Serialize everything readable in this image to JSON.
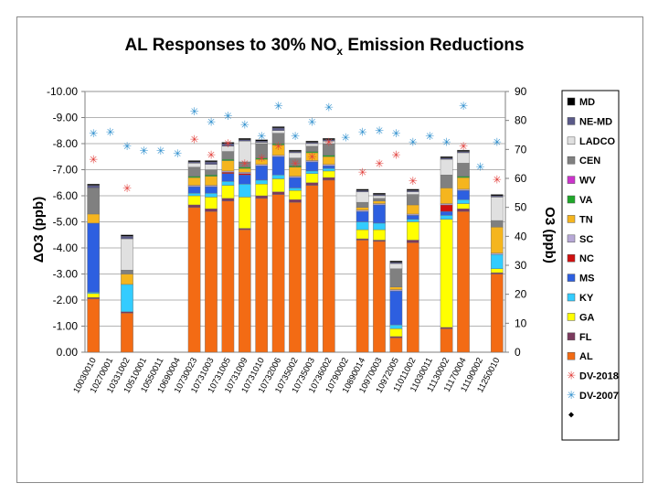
{
  "chart_data": {
    "type": "bar",
    "stacked": true,
    "title": "AL Responses to 30% NOx Emission Reductions",
    "title_main": "AL Responses to 30% NO",
    "title_sub": "x",
    "title_rest": " Emission Reductions",
    "ylabel_left": "ΔO3 (ppb)",
    "ylabel_right": "O3 (ppb)",
    "ylim_left": [
      0,
      -10
    ],
    "ylim_right": [
      0,
      90
    ],
    "yticks_left": [
      "0.00",
      "-1.00",
      "-2.00",
      "-3.00",
      "-4.00",
      "-5.00",
      "-6.00",
      "-7.00",
      "-8.00",
      "-9.00",
      "-10.00"
    ],
    "yticks_right": [
      "0",
      "10",
      "20",
      "30",
      "40",
      "50",
      "60",
      "70",
      "80",
      "90"
    ],
    "categories": [
      "10030010",
      "10270001",
      "10331002",
      "10510001",
      "10550011",
      "10690004",
      "10730023",
      "10731003",
      "10731005",
      "10731009",
      "10731010",
      "10732006",
      "10735002",
      "10735003",
      "10736002",
      "10790002",
      "10890014",
      "10970003",
      "10972005",
      "11011002",
      "11030011",
      "11130002",
      "11170004",
      "11190002",
      "11250010"
    ],
    "series": [
      {
        "name": "AL",
        "color": "#f36b14",
        "values": [
          2.05,
          0,
          1.5,
          0,
          0,
          0,
          5.55,
          5.4,
          5.8,
          4.7,
          5.9,
          6.05,
          5.75,
          6.4,
          6.6,
          0,
          4.3,
          4.25,
          0.55,
          4.2,
          0,
          0.9,
          5.4,
          0,
          3.0
        ]
      },
      {
        "name": "FL",
        "color": "#7b3a5e",
        "values": [
          0.05,
          0,
          0.05,
          0,
          0,
          0,
          0.1,
          0.1,
          0.1,
          0.05,
          0.1,
          0.1,
          0.1,
          0.1,
          0.1,
          0,
          0.05,
          0.05,
          0.05,
          0.1,
          0,
          0.05,
          0.1,
          0,
          0.05
        ]
      },
      {
        "name": "GA",
        "color": "#ffff00",
        "values": [
          0.15,
          0,
          0,
          0,
          0,
          0,
          0.35,
          0.45,
          0.5,
          1.2,
          0.45,
          0.5,
          0.35,
          0.35,
          0.25,
          0,
          0.35,
          0.4,
          0.3,
          0.7,
          0,
          4.15,
          0.2,
          0,
          0.15
        ]
      },
      {
        "name": "KY",
        "color": "#33ccff",
        "values": [
          0.05,
          0,
          1.05,
          0,
          0,
          0,
          0.1,
          0.15,
          0.15,
          0.5,
          0.15,
          0.15,
          0.1,
          0.1,
          0.1,
          0,
          0.3,
          0.25,
          0.15,
          0.1,
          0,
          0.15,
          0.15,
          0,
          0.55
        ]
      },
      {
        "name": "MS",
        "color": "#2d5fe0",
        "values": [
          2.65,
          0,
          0,
          0,
          0,
          0,
          0.25,
          0.25,
          0.3,
          0.35,
          0.55,
          0.7,
          0.4,
          0.35,
          0.1,
          0,
          0.4,
          0.7,
          1.3,
          0.15,
          0,
          0.15,
          0.35,
          0,
          0
        ]
      },
      {
        "name": "NC",
        "color": "#d01010",
        "values": [
          0,
          0,
          0,
          0,
          0,
          0,
          0,
          0,
          0.05,
          0.05,
          0,
          0,
          0,
          0,
          0,
          0,
          0,
          0,
          0,
          0,
          0,
          0.25,
          0,
          0,
          0
        ]
      },
      {
        "name": "SC",
        "color": "#b7a8d6",
        "values": [
          0,
          0,
          0,
          0,
          0,
          0,
          0.05,
          0.05,
          0.05,
          0.05,
          0.05,
          0.05,
          0.05,
          0.05,
          0.05,
          0,
          0.05,
          0.05,
          0.05,
          0.05,
          0,
          0.05,
          0.05,
          0,
          0.05
        ]
      },
      {
        "name": "TN",
        "color": "#f5b51e",
        "values": [
          0.35,
          0,
          0.4,
          0,
          0,
          0,
          0.3,
          0.35,
          0.4,
          0.15,
          0.2,
          0.4,
          0.35,
          0.3,
          0.3,
          0,
          0.1,
          0.1,
          0.1,
          0.35,
          0,
          0.6,
          0.45,
          0,
          1.0
        ]
      },
      {
        "name": "VA",
        "color": "#1fa82a",
        "values": [
          0,
          0,
          0,
          0,
          0,
          0,
          0.05,
          0.05,
          0.05,
          0.05,
          0.05,
          0.05,
          0.05,
          0.05,
          0.05,
          0,
          0,
          0,
          0,
          0,
          0,
          0,
          0.05,
          0,
          0
        ]
      },
      {
        "name": "WV",
        "color": "#cc33cc",
        "values": [
          0,
          0,
          0,
          0,
          0,
          0,
          0,
          0,
          0,
          0,
          0,
          0,
          0,
          0,
          0,
          0,
          0,
          0,
          0,
          0,
          0,
          0,
          0,
          0,
          0
        ]
      },
      {
        "name": "CEN",
        "color": "#808080",
        "values": [
          1.0,
          0,
          0.15,
          0,
          0,
          0,
          0.35,
          0.2,
          0.3,
          0.2,
          0.55,
          0.4,
          0.3,
          0.2,
          0.45,
          0,
          0.2,
          0.1,
          0.7,
          0.4,
          0,
          0.5,
          0.5,
          0,
          0.25
        ]
      },
      {
        "name": "LADCO",
        "color": "#e0e0e0",
        "values": [
          0,
          0,
          1.2,
          0,
          0,
          0,
          0.15,
          0.2,
          0.2,
          0.8,
          0.05,
          0.1,
          0.2,
          0.1,
          0.1,
          0,
          0.4,
          0.1,
          0.2,
          0.1,
          0,
          0.6,
          0.4,
          0,
          0.9
        ]
      },
      {
        "name": "NE-MD",
        "color": "#5a5a88",
        "values": [
          0.1,
          0,
          0.1,
          0,
          0,
          0,
          0.05,
          0.1,
          0.1,
          0.05,
          0.05,
          0.1,
          0.05,
          0.05,
          0.05,
          0,
          0.05,
          0.05,
          0.05,
          0.05,
          0,
          0.05,
          0.05,
          0,
          0.05
        ]
      },
      {
        "name": "MD",
        "color": "#000000",
        "values": [
          0.05,
          0,
          0.05,
          0,
          0,
          0,
          0.05,
          0.05,
          0.05,
          0.05,
          0.05,
          0.05,
          0.05,
          0.05,
          0.05,
          0,
          0.05,
          0.05,
          0.05,
          0.05,
          0,
          0.05,
          0.05,
          0,
          0.05
        ]
      }
    ],
    "markers": [
      {
        "name": "DV-2018",
        "symbol": "✳",
        "color": "#e2403c",
        "axis": "right",
        "values": [
          66.5,
          null,
          56.5,
          null,
          null,
          null,
          73.5,
          68,
          72,
          65,
          67,
          71,
          65,
          67.5,
          72.5,
          null,
          62,
          65,
          68,
          59,
          null,
          null,
          71,
          null,
          59.5
        ]
      },
      {
        "name": "DV-2007",
        "symbol": "✳",
        "color": "#2e8fce",
        "axis": "right",
        "values": [
          75.5,
          76,
          71,
          69.5,
          69.5,
          68.5,
          83,
          79.5,
          81.5,
          78.5,
          74.5,
          85,
          74.5,
          79.5,
          84.5,
          74,
          76,
          76.5,
          75.5,
          72.5,
          74.5,
          72.5,
          85,
          64,
          72.5
        ]
      }
    ],
    "legend_position": "right",
    "legend": [
      "MD",
      "NE-MD",
      "LADCO",
      "CEN",
      "WV",
      "VA",
      "TN",
      "SC",
      "NC",
      "MS",
      "KY",
      "GA",
      "FL",
      "AL",
      "DV-2018",
      "DV-2007",
      ""
    ],
    "grid": true
  }
}
